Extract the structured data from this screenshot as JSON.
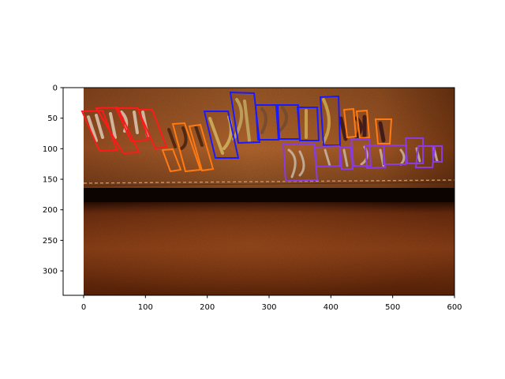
{
  "figure": {
    "x_ticks": [
      "0",
      "100",
      "200",
      "300",
      "400",
      "500",
      "600"
    ],
    "y_ticks": [
      "0",
      "50",
      "100",
      "150",
      "200",
      "250",
      "300"
    ],
    "colors": {
      "red": "#ff1a1a",
      "orange": "#ff7a10",
      "blue": "#1a1aff",
      "purple": "#8a3cdc"
    }
  }
}
